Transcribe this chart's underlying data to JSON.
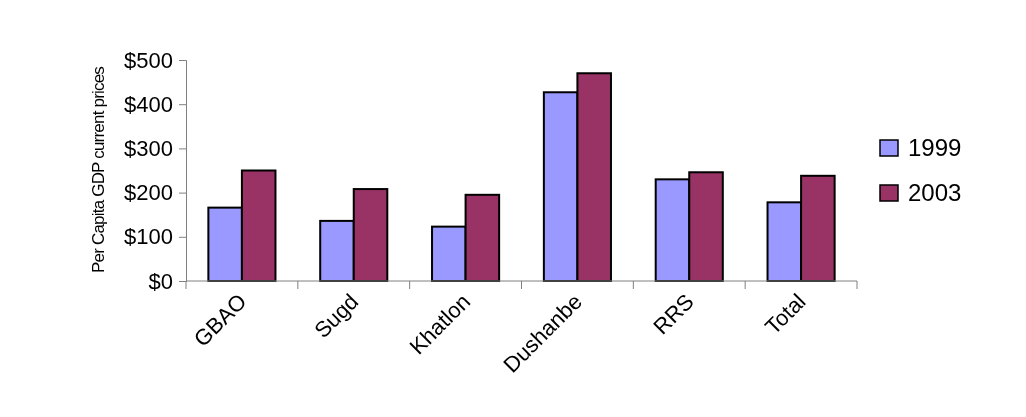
{
  "chart_data": {
    "type": "bar",
    "ylabel": "Per Capita GDP current prices",
    "categories": [
      "GBAO",
      "Sugd",
      "Khatlon",
      "Dushanbe",
      "RRS",
      "Total"
    ],
    "series": [
      {
        "name": "1999",
        "color": "#9999ff",
        "values": [
          166,
          136,
          123,
          427,
          230,
          178
        ]
      },
      {
        "name": "2003",
        "color": "#993366",
        "values": [
          250,
          208,
          195,
          470,
          246,
          238
        ]
      }
    ],
    "ylim": [
      0,
      500
    ],
    "yticks": [
      {
        "value": 0,
        "label": "$0"
      },
      {
        "value": 100,
        "label": "$100"
      },
      {
        "value": 200,
        "label": "$200"
      },
      {
        "value": 300,
        "label": "$300"
      },
      {
        "value": 400,
        "label": "$400"
      },
      {
        "value": 500,
        "label": "$500"
      }
    ],
    "grid": false,
    "legend": "right"
  }
}
